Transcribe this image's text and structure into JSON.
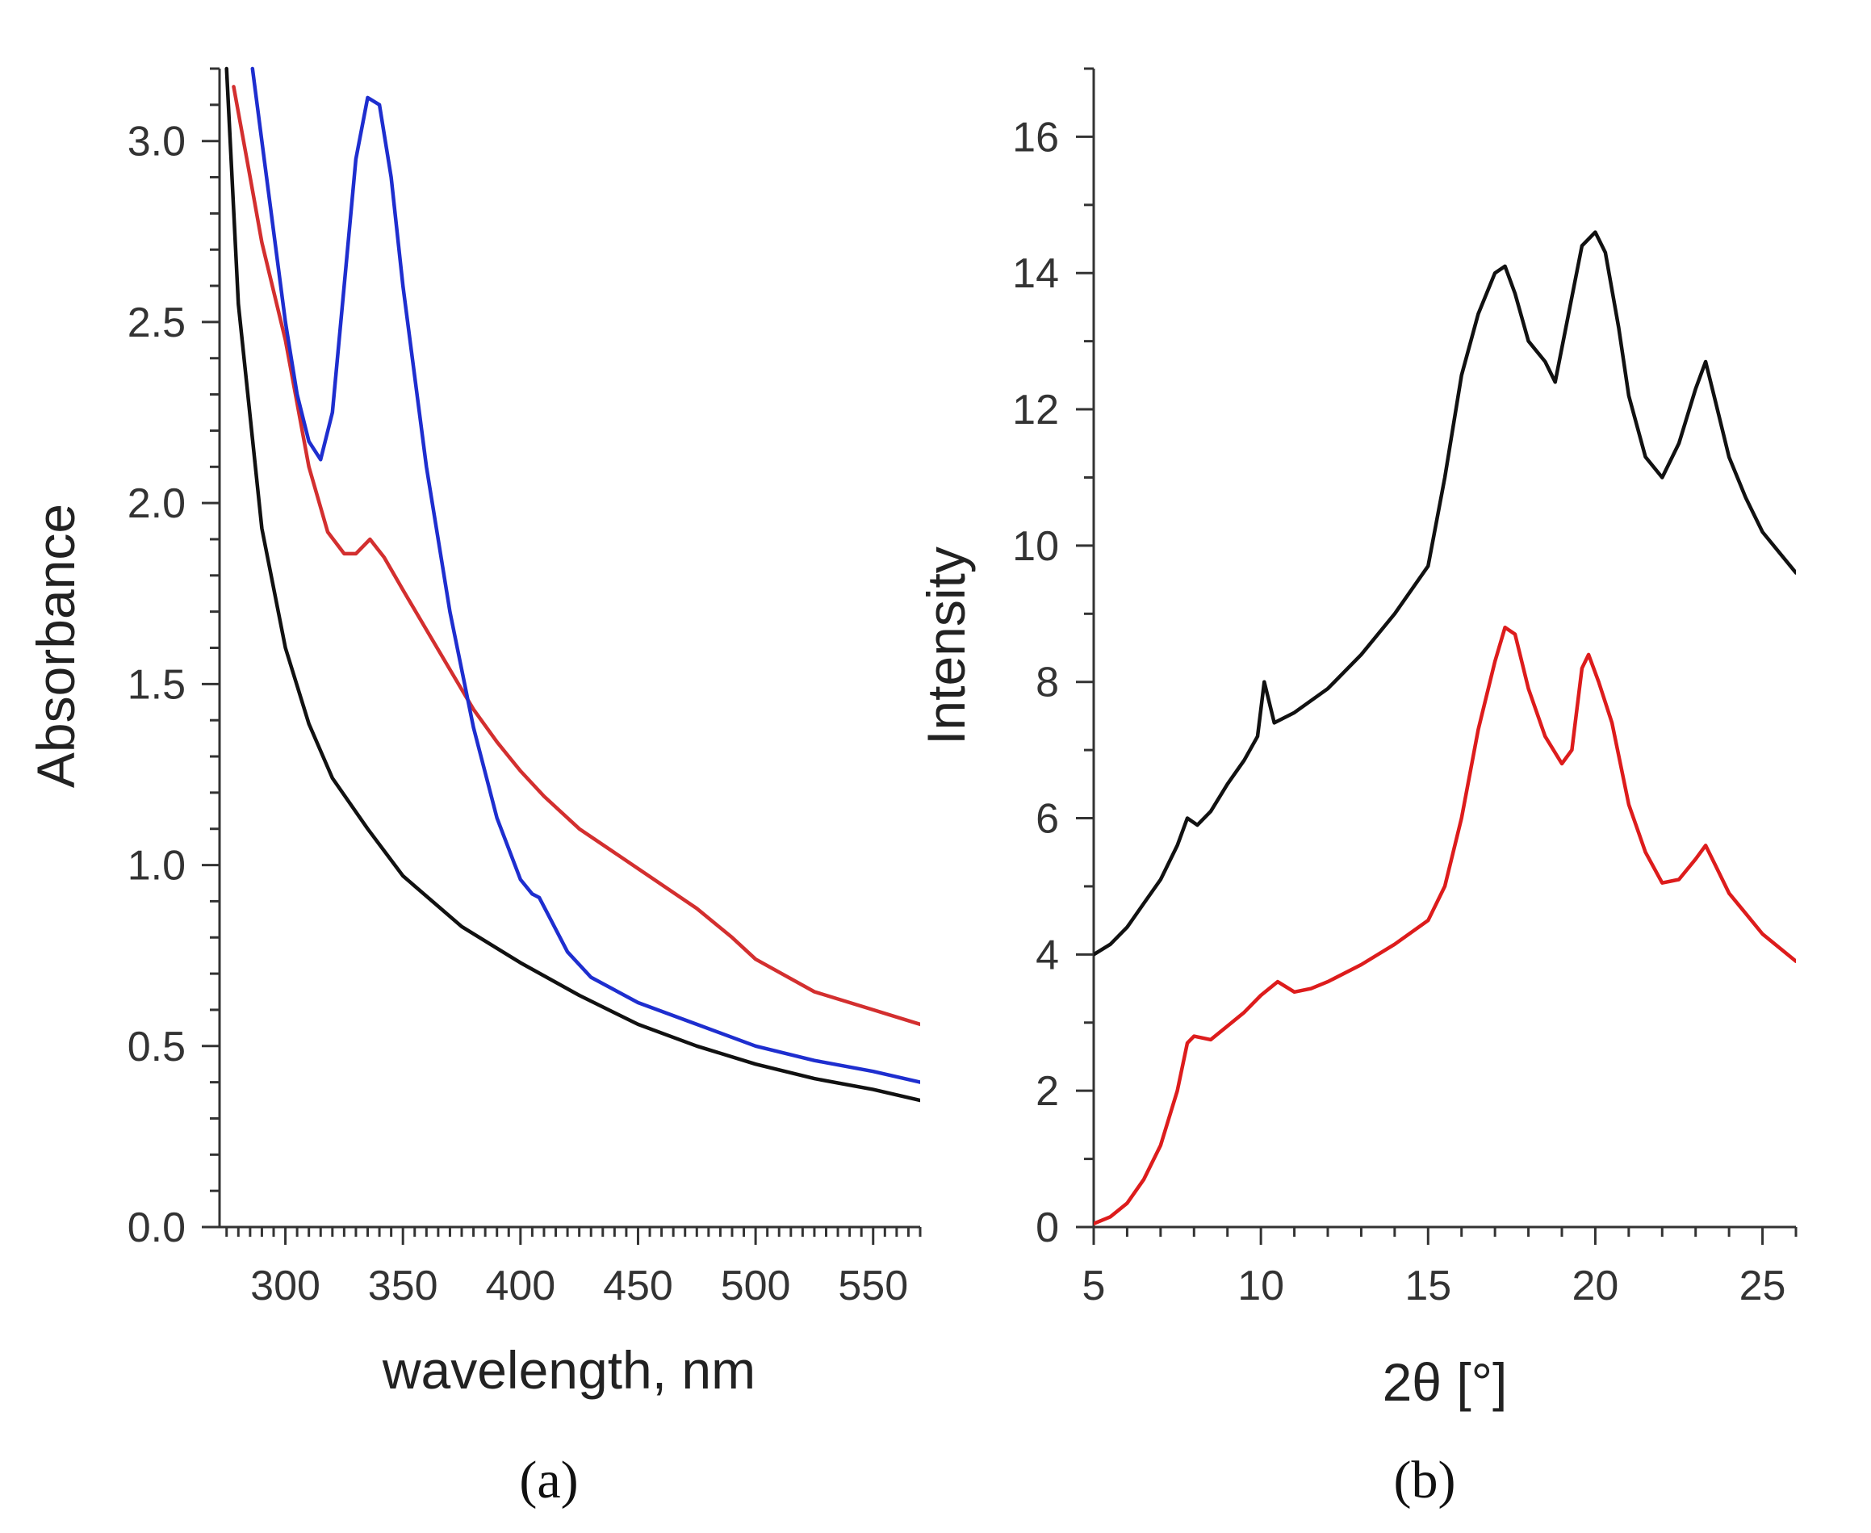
{
  "chart_data": [
    {
      "type": "line",
      "panel": "a",
      "caption": "(a)",
      "title": "",
      "xlabel": "wavelength, nm",
      "ylabel": "Absorbance",
      "xlim": [
        272,
        570
      ],
      "ylim": [
        0.0,
        3.2
      ],
      "xticks": [
        300,
        350,
        400,
        450,
        500,
        550
      ],
      "yticks": [
        0.0,
        0.5,
        1.0,
        1.5,
        2.0,
        2.5,
        3.0
      ],
      "xtick_labels": [
        "300",
        "350",
        "400",
        "450",
        "500",
        "550"
      ],
      "ytick_labels": [
        "0.0",
        "0.5",
        "1.0",
        "1.5",
        "2.0",
        "2.5",
        "3.0"
      ],
      "grid": false,
      "series": [
        {
          "name": "black",
          "color": "#111111",
          "x": [
            275,
            280,
            290,
            300,
            310,
            320,
            335,
            350,
            375,
            400,
            425,
            450,
            475,
            500,
            525,
            550,
            570
          ],
          "y": [
            3.2,
            2.55,
            1.93,
            1.6,
            1.39,
            1.24,
            1.1,
            0.97,
            0.83,
            0.73,
            0.64,
            0.56,
            0.5,
            0.45,
            0.41,
            0.38,
            0.35
          ]
        },
        {
          "name": "red",
          "color": "#d32f2f",
          "x": [
            278,
            285,
            290,
            300,
            310,
            318,
            325,
            330,
            336,
            342,
            350,
            360,
            370,
            380,
            390,
            400,
            410,
            425,
            450,
            475,
            490,
            500,
            525,
            550,
            570
          ],
          "y": [
            3.15,
            2.9,
            2.72,
            2.45,
            2.1,
            1.92,
            1.86,
            1.86,
            1.9,
            1.85,
            1.76,
            1.65,
            1.54,
            1.43,
            1.34,
            1.26,
            1.19,
            1.1,
            0.99,
            0.88,
            0.8,
            0.74,
            0.65,
            0.6,
            0.56
          ]
        },
        {
          "name": "blue",
          "color": "#1e2ecf",
          "x": [
            286,
            290,
            295,
            300,
            305,
            310,
            315,
            320,
            325,
            330,
            335,
            340,
            345,
            350,
            360,
            370,
            380,
            390,
            400,
            405,
            408,
            412,
            420,
            430,
            450,
            475,
            500,
            525,
            550,
            570
          ],
          "y": [
            3.2,
            3.0,
            2.75,
            2.5,
            2.3,
            2.17,
            2.12,
            2.25,
            2.6,
            2.95,
            3.12,
            3.1,
            2.9,
            2.6,
            2.1,
            1.7,
            1.38,
            1.13,
            0.96,
            0.92,
            0.91,
            0.86,
            0.76,
            0.69,
            0.62,
            0.56,
            0.5,
            0.46,
            0.43,
            0.4
          ]
        }
      ]
    },
    {
      "type": "line",
      "panel": "b",
      "caption": "(b)",
      "title": "",
      "xlabel": "2θ [°]",
      "ylabel": "Intensity",
      "xlim": [
        5,
        26
      ],
      "ylim": [
        0,
        17
      ],
      "xticks": [
        5,
        10,
        15,
        20,
        25
      ],
      "yticks": [
        0,
        2,
        4,
        6,
        8,
        10,
        12,
        14,
        16
      ],
      "xtick_labels": [
        "5",
        "10",
        "15",
        "20",
        "25"
      ],
      "ytick_labels": [
        "0",
        "2",
        "4",
        "6",
        "8",
        "10",
        "12",
        "14",
        "16"
      ],
      "grid": false,
      "series": [
        {
          "name": "black",
          "color": "#111111",
          "x": [
            5.0,
            5.5,
            6.0,
            6.5,
            7.0,
            7.5,
            7.8,
            8.1,
            8.5,
            9.0,
            9.5,
            9.9,
            10.1,
            10.4,
            11.0,
            12.0,
            13.0,
            14.0,
            15.0,
            15.5,
            16.0,
            16.5,
            17.0,
            17.3,
            17.6,
            18.0,
            18.5,
            18.8,
            19.2,
            19.6,
            20.0,
            20.3,
            20.7,
            21.0,
            21.5,
            22.0,
            22.5,
            23.0,
            23.3,
            23.6,
            24.0,
            24.5,
            25.0,
            25.5,
            26.0
          ],
          "y": [
            4.0,
            4.15,
            4.4,
            4.75,
            5.1,
            5.6,
            6.0,
            5.9,
            6.1,
            6.5,
            6.85,
            7.2,
            8.0,
            7.4,
            7.55,
            7.9,
            8.4,
            9.0,
            9.7,
            11.0,
            12.5,
            13.4,
            14.0,
            14.1,
            13.7,
            13.0,
            12.7,
            12.4,
            13.4,
            14.4,
            14.6,
            14.3,
            13.2,
            12.2,
            11.3,
            11.0,
            11.5,
            12.3,
            12.7,
            12.1,
            11.3,
            10.7,
            10.2,
            9.9,
            9.6
          ]
        },
        {
          "name": "red",
          "color": "#dd1c1c",
          "x": [
            5.0,
            5.5,
            6.0,
            6.5,
            7.0,
            7.5,
            7.8,
            8.0,
            8.5,
            9.0,
            9.5,
            10.0,
            10.5,
            11.0,
            11.5,
            12.0,
            13.0,
            14.0,
            15.0,
            15.5,
            16.0,
            16.5,
            17.0,
            17.3,
            17.6,
            18.0,
            18.5,
            19.0,
            19.3,
            19.6,
            19.8,
            20.1,
            20.5,
            21.0,
            21.5,
            22.0,
            22.5,
            23.0,
            23.3,
            23.6,
            24.0,
            24.5,
            25.0,
            25.5,
            26.0
          ],
          "y": [
            0.05,
            0.15,
            0.35,
            0.7,
            1.2,
            2.0,
            2.7,
            2.8,
            2.75,
            2.95,
            3.15,
            3.4,
            3.6,
            3.45,
            3.5,
            3.6,
            3.85,
            4.15,
            4.5,
            5.0,
            6.0,
            7.3,
            8.3,
            8.8,
            8.7,
            7.9,
            7.2,
            6.8,
            7.0,
            8.2,
            8.4,
            8.0,
            7.4,
            6.2,
            5.5,
            5.05,
            5.1,
            5.4,
            5.6,
            5.3,
            4.9,
            4.6,
            4.3,
            4.1,
            3.9
          ]
        }
      ]
    }
  ]
}
